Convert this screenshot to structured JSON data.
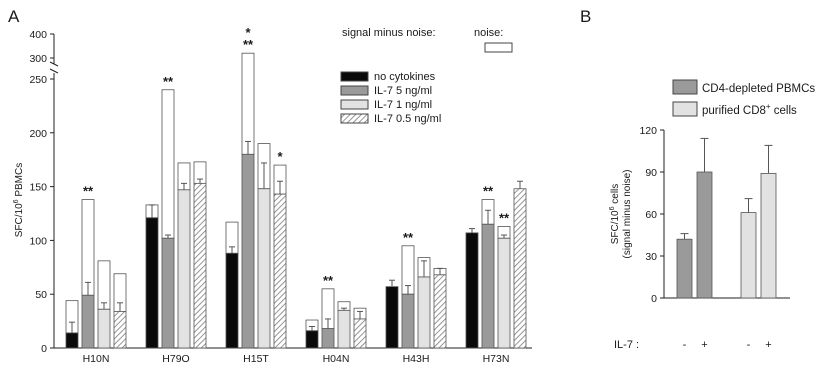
{
  "chart_data": [
    {
      "type": "bar",
      "panel_label": "A",
      "categories": [
        "H10N",
        "H79O",
        "H15T",
        "H04N",
        "H43H",
        "H73N"
      ],
      "ylabel_main": "SFC/10",
      "ylabel_sup": "6",
      "ylabel_tail": " PBMCs",
      "ylim_lower": [
        0,
        250
      ],
      "yticks_lower": [
        "0",
        "50",
        "100",
        "150",
        "200",
        "250"
      ],
      "ylim_upper": [
        300,
        400
      ],
      "yticks_upper": [
        "300",
        "400"
      ],
      "legend_signal_title": "signal minus noise:",
      "legend_noise_title": "noise:",
      "series": [
        {
          "name": "no cytokines",
          "fill": "black",
          "values": [
            14,
            121,
            88,
            16,
            57,
            107
          ],
          "errors": [
            10,
            12,
            6,
            4,
            6,
            4
          ],
          "noise_tops": [
            44,
            133,
            117,
            26,
            57,
            107
          ]
        },
        {
          "name": "IL-7 5 ng/ml",
          "fill": "darkgray",
          "values": [
            49,
            102,
            180,
            18,
            50,
            115
          ],
          "errors": [
            12,
            3,
            12,
            9,
            8,
            13
          ],
          "noise_tops": [
            138,
            240,
            320,
            55,
            95,
            138
          ]
        },
        {
          "name": "IL-7 1 ng/ml",
          "fill": "lightgray",
          "values": [
            36,
            147,
            148,
            35,
            66,
            102
          ],
          "errors": [
            6,
            6,
            24,
            2,
            15,
            3
          ],
          "noise_tops": [
            81,
            172,
            190,
            43,
            84,
            113
          ]
        },
        {
          "name": "IL-7 0.5 ng/ml",
          "fill": "hatched",
          "values": [
            34,
            153,
            143,
            27,
            68,
            148
          ],
          "errors": [
            8,
            4,
            12,
            7,
            6,
            7
          ],
          "noise_tops": [
            69,
            173,
            170,
            37,
            74,
            148
          ]
        }
      ],
      "annotations": [
        {
          "text": "**",
          "category": "H10N",
          "series": 1,
          "y": 138
        },
        {
          "text": "**",
          "category": "H79O",
          "series": 1,
          "y": 240
        },
        {
          "text": "*",
          "category": "H15T",
          "series": 1,
          "y": 320,
          "level": 2
        },
        {
          "text": "**",
          "category": "H15T",
          "series": 1,
          "y": 320,
          "level": 1
        },
        {
          "text": "*",
          "category": "H15T",
          "series": 3,
          "y": 170
        },
        {
          "text": "**",
          "category": "H04N",
          "series": 1,
          "y": 55
        },
        {
          "text": "**",
          "category": "H43H",
          "series": 1,
          "y": 95
        },
        {
          "text": "**",
          "category": "H73N",
          "series": 1,
          "y": 138
        },
        {
          "text": "**",
          "category": "H73N",
          "series": 2,
          "y": 113
        }
      ]
    },
    {
      "type": "bar",
      "panel_label": "B",
      "ylabel_line1_main": "SFC/10",
      "ylabel_line1_sup": "6",
      "ylabel_line1_tail": " cells",
      "ylabel_line2": "(signal minus noise)",
      "ylim": [
        0,
        120
      ],
      "yticks": [
        "0",
        "30",
        "60",
        "90",
        "120"
      ],
      "xlabel": "IL-7 :",
      "legend": [
        {
          "label": "CD4-depleted PBMCs",
          "fill": "darkgray"
        },
        {
          "label_main": "purified CD8",
          "label_sup": "+",
          "label_tail": " cells",
          "fill": "lightgray"
        }
      ],
      "bars": [
        {
          "group": "CD4-depleted PBMCs",
          "il7": "-",
          "value": 42,
          "error": 4
        },
        {
          "group": "CD4-depleted PBMCs",
          "il7": "+",
          "value": 90,
          "error": 24
        },
        {
          "group": "purified CD8+ cells",
          "il7": "-",
          "value": 61,
          "error": 10
        },
        {
          "group": "purified CD8+ cells",
          "il7": "+",
          "value": 89,
          "error": 20
        }
      ]
    }
  ],
  "colors": {
    "black": "#0a0a0a",
    "darkgray": "#9a9a9a",
    "lightgray": "#e2e2e2",
    "hatch": "#7a7a7a",
    "noise": "#ffffff",
    "stroke": "#555555",
    "axis": "#222222"
  }
}
